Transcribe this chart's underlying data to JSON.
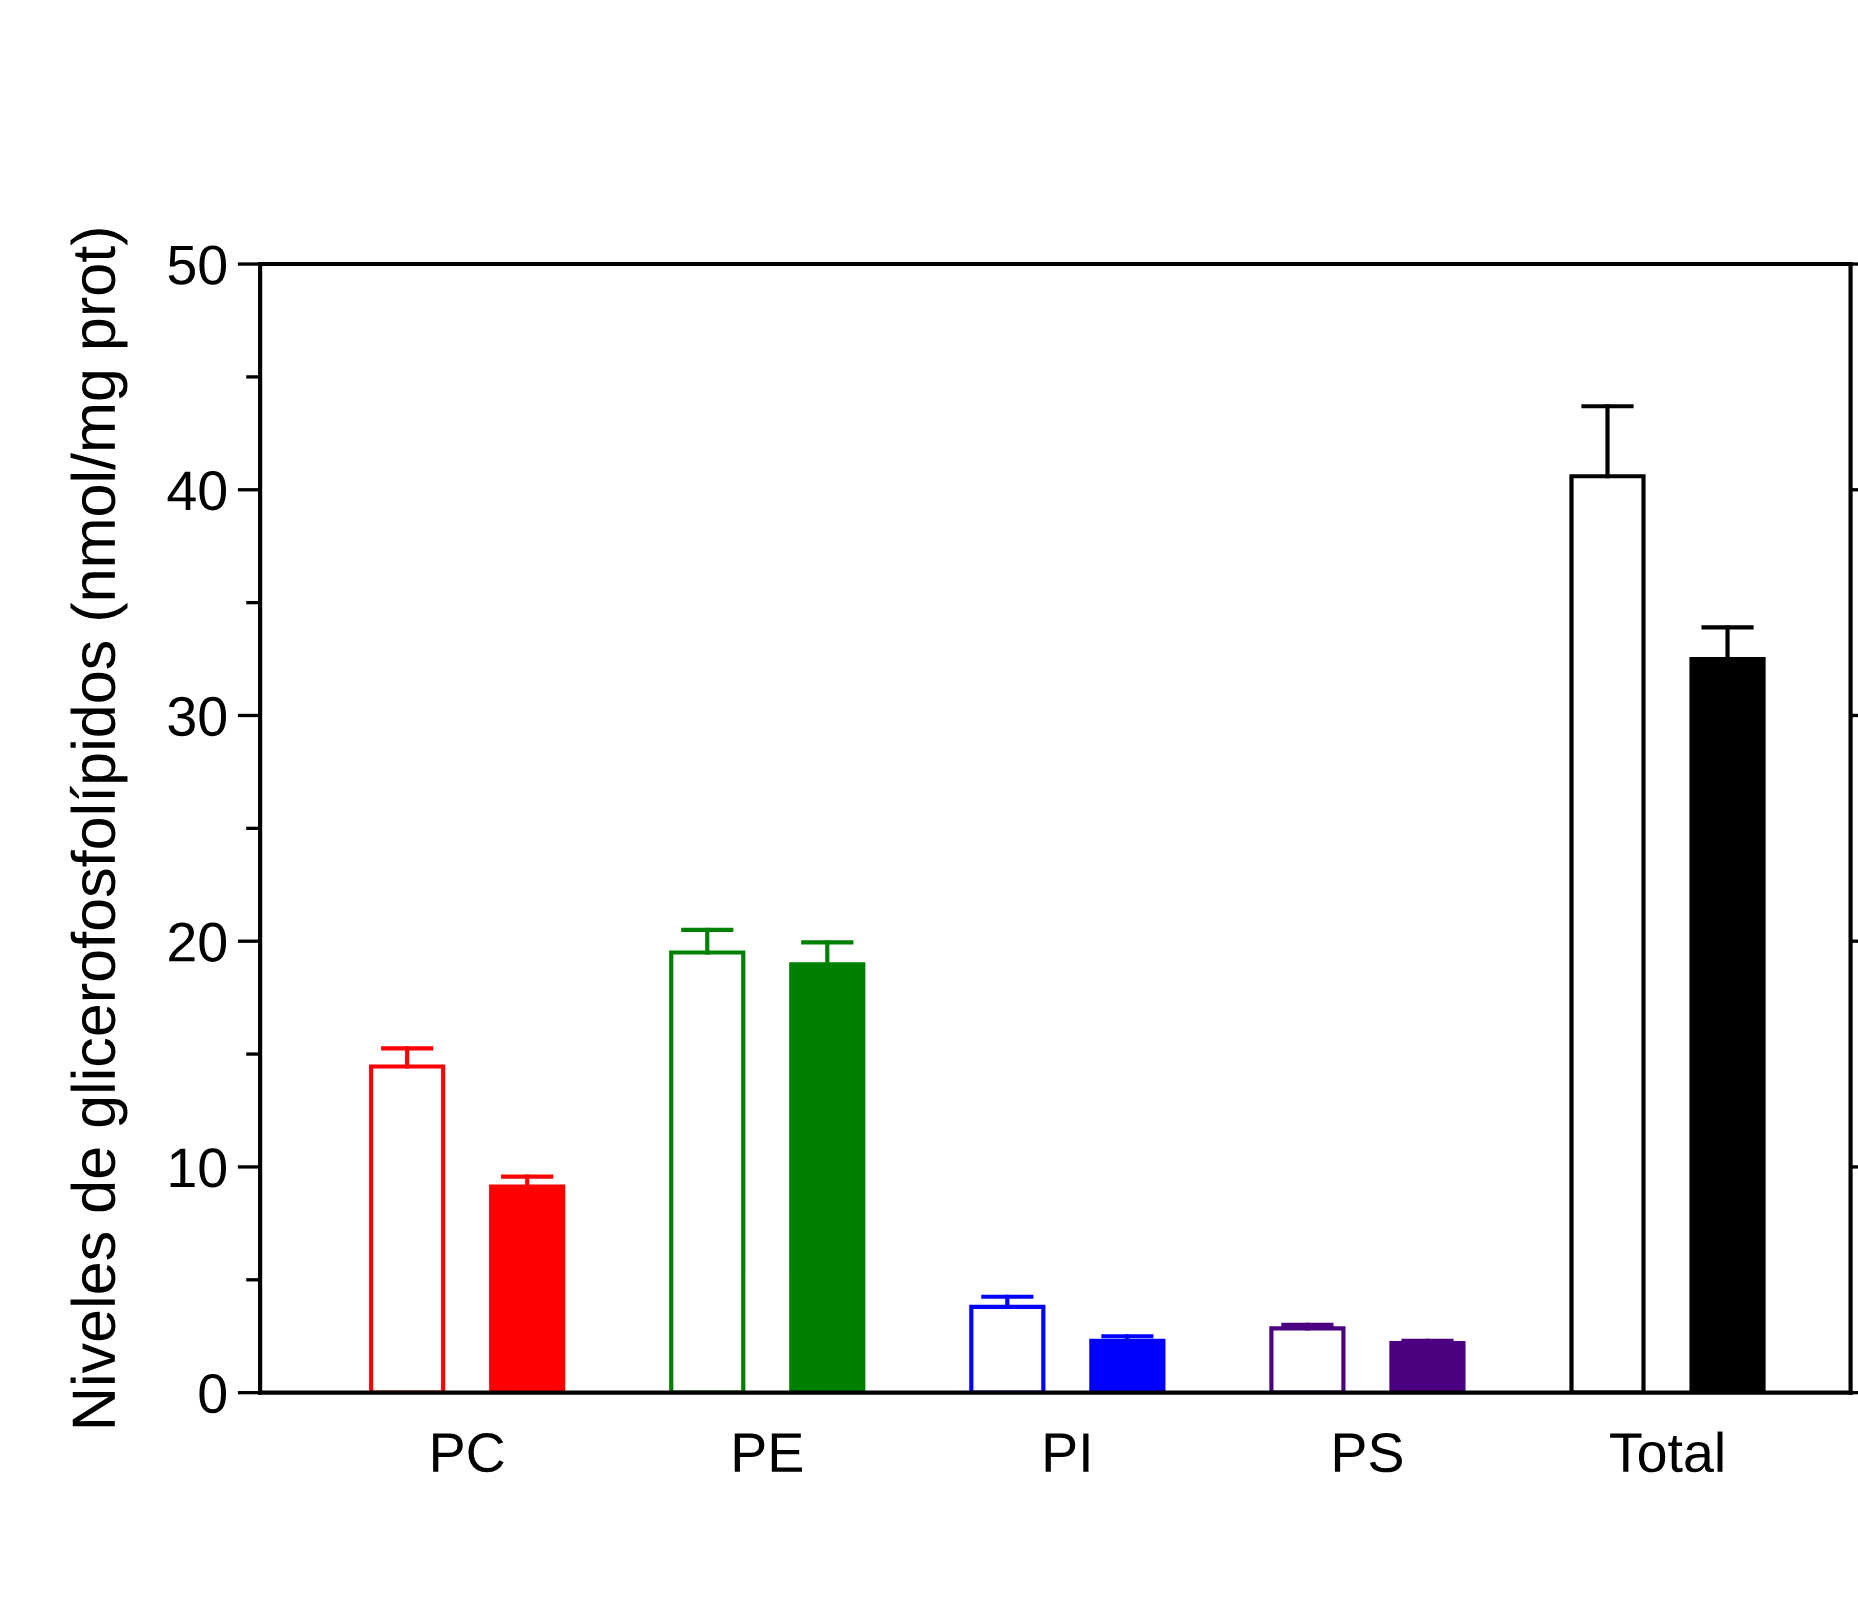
{
  "chart_data": {
    "type": "bar",
    "ylabel": "Niveles de glicerofosfolípidos (nmol/mg prot)",
    "categories": [
      "PC",
      "PE",
      "PI",
      "PS",
      "Total"
    ],
    "series": [
      {
        "colors": [
          "#ffffff",
          "#ffffff",
          "#ffffff",
          "#ffffff",
          "#ffffff"
        ],
        "values": [
          14.45,
          19.5,
          3.8,
          2.85,
          40.6
        ],
        "errors": [
          [
            14.45,
            15.25
          ],
          [
            19.5,
            20.5
          ],
          [
            3.8,
            4.25
          ],
          [
            2.85,
            3.0
          ],
          [
            40.6,
            43.7
          ]
        ]
      },
      {
        "colors": [
          "#ff0000",
          "#008000",
          "#0000ff",
          "#4b0082",
          "#000000"
        ],
        "values": [
          9.13,
          18.97,
          2.3,
          2.2,
          32.5
        ],
        "errors": [
          [
            9.13,
            9.57
          ],
          [
            18.97,
            19.95
          ],
          [
            2.3,
            2.5
          ],
          [
            2.2,
            2.3
          ],
          [
            32.5,
            33.9
          ]
        ]
      }
    ],
    "ylim": [
      0,
      50
    ],
    "yticks": [
      0,
      {
        "value": 5,
        "label": null
      },
      10,
      {
        "value": 15,
        "label": null
      },
      20,
      {
        "value": 25,
        "label": null
      },
      30,
      {
        "value": 35,
        "label": null
      },
      40,
      {
        "value": 45,
        "label": null
      },
      50
    ],
    "grid": false,
    "legend": false
  }
}
